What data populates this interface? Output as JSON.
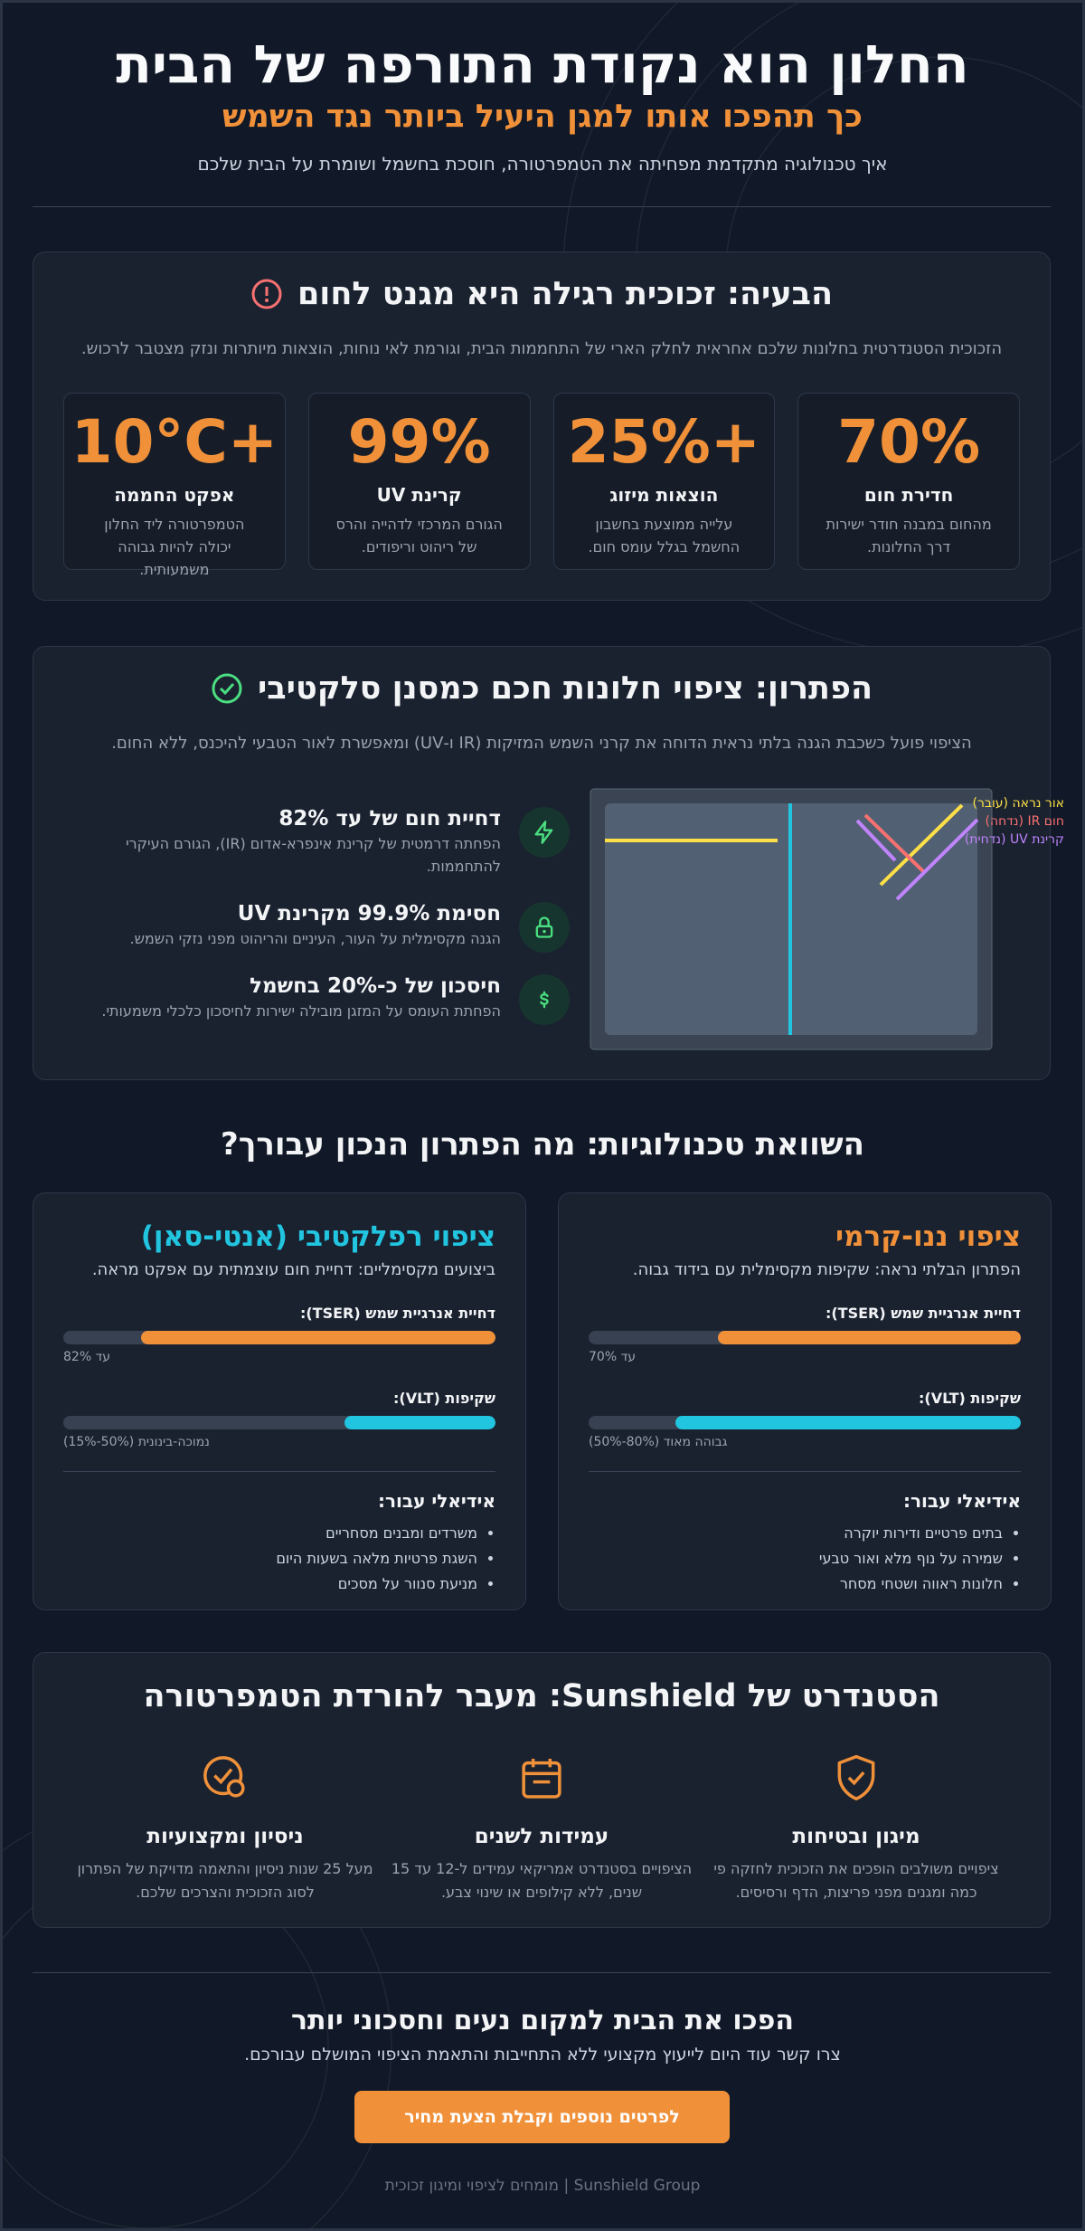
{
  "header": {
    "title": "החלון הוא נקודת התורפה של הבית",
    "subtitle": "כך תהפכו אותו למגן היעיל ביותר נגד השמש",
    "description": "איך טכנולוגיה מתקדמת מפחיתה את הטמפרטורה, חוסכת בחשמל ושומרת על הבית שלכם"
  },
  "problem": {
    "title": "הבעיה: זכוכית רגילה היא מגנט לחום",
    "description": "הזכוכית הסטנדרטית בחלונות שלכם אחראית לחלק הארי של התחממות הבית, וגורמת לאי נוחות, הוצאות מיותרות ונזק מצטבר לרכוש.",
    "stats": [
      {
        "value": "70%",
        "label": "חדירת חום",
        "text": "מהחום במבנה חודר ישירות דרך החלונות."
      },
      {
        "value": "25%+",
        "label": "הוצאות מיזוג",
        "text": "עלייה ממוצעת בחשבון החשמל בגלל עומס חום."
      },
      {
        "value": "99%",
        "label": "קרינת UV",
        "text": "הגורם המרכזי לדהייה והרס של ריהוט וריפודים."
      },
      {
        "value": "10°C+",
        "label": "אפקט החממה",
        "text": "הטמפרטורה ליד החלון יכולה להיות גבוהה משמעותית."
      }
    ]
  },
  "solution": {
    "title": "הפתרון: ציפוי חלונות חכם כמסנן סלקטיבי",
    "description": "הציפוי פועל כשכבת הגנה בלתי נראית הדוחה את קרני השמש המזיקות (IR ו-UV) ומאפשרת לאור הטבעי להיכנס, ללא החום.",
    "features": [
      {
        "title": "דחיית חום של עד 82%",
        "text": "הפחתה דרמטית של קרינת אינפרא-אדום (IR), הגורם העיקרי להתחממות."
      },
      {
        "title": "חסימת 99.9% מקרינת UV",
        "text": "הגנה מקסימלית על העור, העיניים והריהוט מפני נזקי השמש."
      },
      {
        "title": "חיסכון של כ-20% בחשמל",
        "text": "הפחתת העומס על המזגן מובילה ישירות לחיסכון כלכלי משמעותי."
      }
    ],
    "legend": [
      "אור נראה (עובר)",
      "חום IR (נדחה)",
      "קרינת UV (נדחית)"
    ]
  },
  "compare": {
    "title": "השוואת טכנולוגיות: מה הפתרון הנכון עבורך?",
    "ideal_label": "אידיאלי עבור:",
    "cards": [
      {
        "title": "ציפוי ננו-קרמי",
        "description": "הפתרון הבלתי נראה: שקיפות מקסימלית עם בידוד גבוה.",
        "bars": [
          {
            "label": "דחיית אנרגיית שמש (TSER):",
            "fill": 70,
            "note": "עד 70%"
          },
          {
            "label": "שקיפות (VLT):",
            "fill": 80,
            "note": "גבוהה מאוד (80%-50%)"
          }
        ],
        "ideal": [
          "בתים פרטיים ודירות יוקרה",
          "שמירה על נוף מלא ואור טבעי",
          "חלונות ראווה ושטחי מסחר"
        ]
      },
      {
        "title": "ציפוי רפלקטיבי (אנטי-סאן)",
        "description": "ביצועים מקסימליים: דחיית חום עוצמתית עם אפקט מראה.",
        "bars": [
          {
            "label": "דחיית אנרגיית שמש (TSER):",
            "fill": 82,
            "note": "עד 82%"
          },
          {
            "label": "שקיפות (VLT):",
            "fill": 35,
            "note": "נמוכה-בינונית (50%-15%)"
          }
        ],
        "ideal": [
          "משרדים ומבנים מסחריים",
          "השגת פרטיות מלאה בשעות היום",
          "מניעת סנוור על מסכים"
        ]
      }
    ]
  },
  "standard": {
    "title": "הסטנדרט של Sunshield: מעבר להורדת הטמפרטורה",
    "features": [
      {
        "title": "מיגון ובטיחות",
        "text": "ציפויים משולבים הופכים את הזכוכית לחזקה פי כמה ומגנים מפני פריצות, הדף ורסיסים."
      },
      {
        "title": "עמידות לשנים",
        "text": "הציפויים בסטנדרט אמריקאי עמידים ל-12 עד 15 שנים, ללא קילופים או שינוי צבע."
      },
      {
        "title": "ניסיון ומקצועיות",
        "text": "מעל 25 שנות ניסיון והתאמה מדויקת של הפתרון לסוג הזכוכית והצרכים שלכם."
      }
    ]
  },
  "cta": {
    "title": "הפכו את הבית למקום נעים וחסכוני יותר",
    "text": "צרו קשר עוד היום לייעוץ מקצועי ללא התחייבות והתאמת הציפוי המושלם עבורכם.",
    "button": "לפרטים נוספים וקבלת הצעת מחיר"
  },
  "footer": "Sunshield Group | מומחים לציפוי ומיגון זכוכית"
}
